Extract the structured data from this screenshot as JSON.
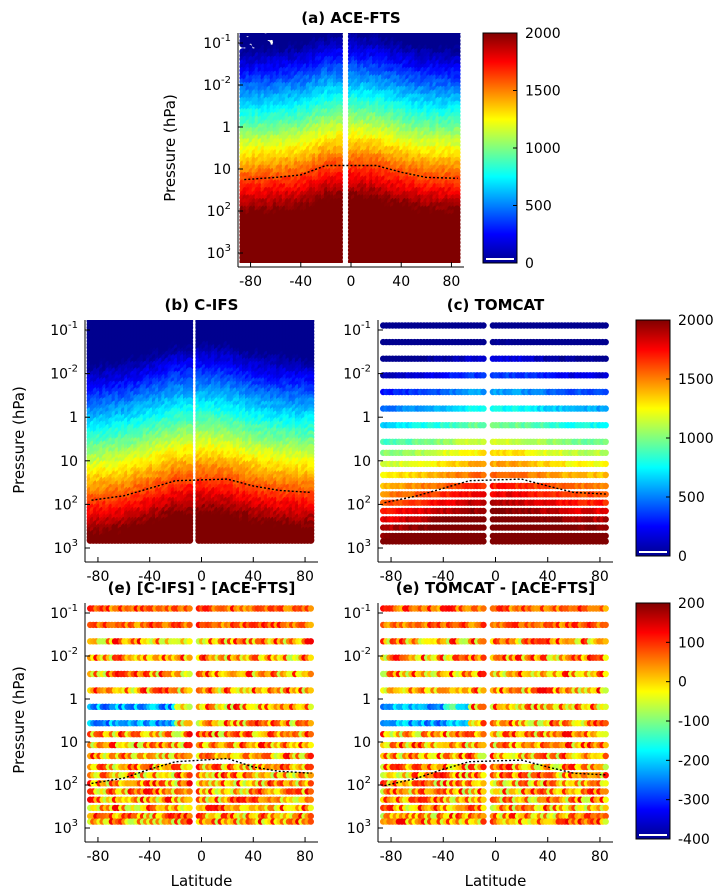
{
  "figure": {
    "colormap": [
      "#00008f",
      "#0000ff",
      "#0080ff",
      "#00ffff",
      "#80ff80",
      "#ffff00",
      "#ff8000",
      "#ff0000",
      "#800000"
    ]
  },
  "chart_data": [
    {
      "type": "heatmap",
      "panel": "a",
      "title": "(a) ACE-FTS",
      "ylabel": "Pressure (hPa)",
      "xlabel": "",
      "yscale": "log",
      "y_reversed": true,
      "xlim": [
        -90,
        90
      ],
      "ylim_hPa": [
        0.1,
        2000
      ],
      "x_ticks": [
        "-80",
        "-40",
        "0",
        "40",
        "80"
      ],
      "y_ticks": [
        "10^-1",
        "10^-2",
        "1",
        "10",
        "10^2",
        "10^3"
      ],
      "gap_latitude_range": [
        -8,
        -1
      ],
      "field": "values increase from ~300 at 0.1 hPa to ~2000 at 1000 hPa; transition altitude higher in tropics",
      "tropopause_hPa_by_lat": [
        [
          -85,
          55
        ],
        [
          -60,
          50
        ],
        [
          -40,
          45
        ],
        [
          -20,
          30
        ],
        [
          0,
          28
        ],
        [
          20,
          30
        ],
        [
          40,
          40
        ],
        [
          60,
          50
        ],
        [
          85,
          52
        ]
      ]
    },
    {
      "type": "heatmap",
      "panel": "b",
      "title": "(b) C-IFS",
      "ylabel": "Pressure (hPa)",
      "xlabel": "",
      "yscale": "log",
      "y_reversed": true,
      "xlim": [
        -90,
        90
      ],
      "x_ticks": [
        "-80",
        "-40",
        "0",
        "40",
        "80"
      ],
      "y_ticks": [
        "10^-1",
        "10^-2",
        "1",
        "10",
        "10^2",
        "10^3"
      ],
      "gap_latitude_range": [
        -8,
        -2
      ],
      "field": "model levels 0.02-1000 hPa; smooth gradient blue (upper) to dark red (lower)",
      "tropopause_hPa_by_lat": [
        [
          -85,
          180
        ],
        [
          -60,
          150
        ],
        [
          -40,
          110
        ],
        [
          -20,
          80
        ],
        [
          0,
          70
        ],
        [
          20,
          75
        ],
        [
          40,
          100
        ],
        [
          60,
          120
        ],
        [
          85,
          130
        ]
      ]
    },
    {
      "type": "heatmap",
      "panel": "c",
      "title": "(c) TOMCAT",
      "ylabel": "",
      "xlabel": "",
      "yscale": "log",
      "y_reversed": true,
      "xlim": [
        -90,
        90
      ],
      "x_ticks": [
        "-80",
        "-40",
        "0",
        "40",
        "80"
      ],
      "y_ticks": [
        "10^-1",
        "10^-2",
        "1",
        "10",
        "10^2",
        "10^3"
      ],
      "gap_latitude_range": [
        -8,
        -2
      ],
      "field": "discrete model levels 0.01-1000 hPa; blue above ~10 hPa, red below ~100 hPa",
      "tropopause_hPa_by_lat": [
        [
          -85,
          200
        ],
        [
          -60,
          150
        ],
        [
          -40,
          110
        ],
        [
          -20,
          80
        ],
        [
          0,
          70
        ],
        [
          20,
          75
        ],
        [
          40,
          100
        ],
        [
          60,
          130
        ],
        [
          85,
          140
        ]
      ]
    },
    {
      "type": "heatmap",
      "panel": "d",
      "title": "(e) [C-IFS] - [ACE-FTS]",
      "ylabel": "Pressure (hPa)",
      "xlabel": "Latitude",
      "yscale": "log",
      "y_reversed": true,
      "xlim": [
        -90,
        90
      ],
      "x_ticks": [
        "-80",
        "-40",
        "0",
        "40",
        "80"
      ],
      "y_ticks": [
        "10^-1",
        "10^-2",
        "1",
        "10",
        "10^2",
        "10^3"
      ],
      "gap_latitude_range": [
        -8,
        -2
      ],
      "field": "differences mostly positive (orange/red) with negative (blue) band near 10 hPa at southern latitudes",
      "tropopause_hPa_by_lat": [
        [
          -85,
          200
        ],
        [
          -60,
          160
        ],
        [
          -40,
          110
        ],
        [
          -20,
          80
        ],
        [
          0,
          70
        ],
        [
          20,
          70
        ],
        [
          40,
          100
        ],
        [
          60,
          120
        ],
        [
          85,
          130
        ]
      ]
    },
    {
      "type": "heatmap",
      "panel": "e",
      "title": "(e) TOMCAT - [ACE-FTS]",
      "ylabel": "",
      "xlabel": "Latitude",
      "yscale": "log",
      "y_reversed": true,
      "xlim": [
        -90,
        90
      ],
      "x_ticks": [
        "-80",
        "-40",
        "0",
        "40",
        "80"
      ],
      "y_ticks": [
        "10^-1",
        "10^-2",
        "1",
        "10",
        "10^2",
        "10^3"
      ],
      "gap_latitude_range": [
        -8,
        -2
      ],
      "field": "differences mostly positive (red), some negative (blue) pockets near 10 hPa",
      "tropopause_hPa_by_lat": [
        [
          -85,
          220
        ],
        [
          -60,
          160
        ],
        [
          -40,
          110
        ],
        [
          -20,
          80
        ],
        [
          0,
          70
        ],
        [
          20,
          75
        ],
        [
          40,
          100
        ],
        [
          60,
          130
        ],
        [
          85,
          140
        ]
      ]
    }
  ],
  "colorbars": [
    {
      "panel": "a",
      "ticks": [
        "2000",
        "1500",
        "1000",
        "500",
        "0"
      ],
      "range": [
        0,
        2000
      ]
    },
    {
      "panel": "bc",
      "ticks": [
        "2000",
        "1500",
        "1000",
        "500",
        "0"
      ],
      "range": [
        0,
        2000
      ]
    },
    {
      "panel": "de",
      "ticks": [
        "200",
        "100",
        "0",
        "-100",
        "-200",
        "-300",
        "-400"
      ],
      "range": [
        -400,
        200
      ]
    }
  ]
}
